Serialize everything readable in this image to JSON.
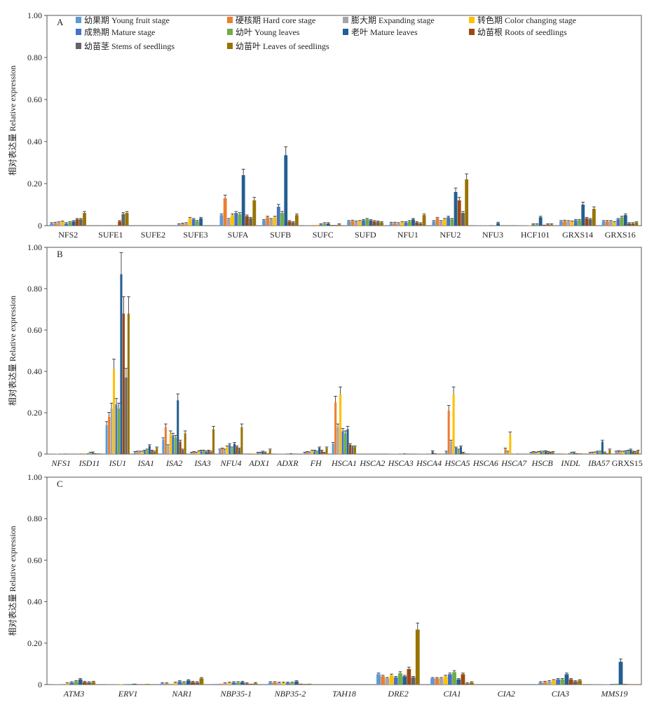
{
  "figure": {
    "legend": [
      {
        "label": "幼果期 Young fruit stage",
        "color": "#5B9BD5"
      },
      {
        "label": "硬核期 Hard core stage",
        "color": "#ED7D31"
      },
      {
        "label": "膨大期 Expanding stage",
        "color": "#A5A5A5"
      },
      {
        "label": "转色期 Color changing stage",
        "color": "#FFC000"
      },
      {
        "label": "成熟期 Mature stage",
        "color": "#4472C4"
      },
      {
        "label": "幼叶 Young leaves",
        "color": "#70AD47"
      },
      {
        "label": "老叶 Mature leaves",
        "color": "#255E91"
      },
      {
        "label": "幼苗根 Roots of seedlings",
        "color": "#9E480E"
      },
      {
        "label": "幼苗茎 Stems of seedlings",
        "color": "#636363"
      },
      {
        "label": "幼苗叶 Leaves of seedlings",
        "color": "#997300"
      }
    ]
  },
  "chart_data": [
    {
      "type": "bar",
      "panel": "A",
      "ylabel": "相对表达量 Relative expression",
      "ylim": [
        0,
        1.0
      ],
      "yticks": [
        "0",
        "0.20",
        "0.40",
        "0.60",
        "0.80",
        "1.00"
      ],
      "italic_categories": false,
      "categories": [
        "NFS2",
        "SUFE1",
        "SUFE2",
        "SUFE3",
        "SUFA",
        "SUFB",
        "SUFC",
        "SUFD",
        "NFU1",
        "NFU2",
        "NFU3",
        "HCF101",
        "GRXS14",
        "GRXS16"
      ],
      "values": [
        [
          0.01,
          0.012,
          0.015,
          0.018,
          0.01,
          0.015,
          0.02,
          0.03,
          0.03,
          0.06
        ],
        [
          0.0,
          0.0,
          0.0,
          0.0,
          0.0,
          0.0,
          0.0,
          0.02,
          0.055,
          0.06
        ],
        [
          0.0,
          0.0,
          0.0,
          0.0,
          0.0,
          0.0,
          0.0,
          0.0,
          0.0,
          0.0
        ],
        [
          0.005,
          0.008,
          0.01,
          0.035,
          0.03,
          0.02,
          0.035,
          0.0,
          0.0,
          0.0
        ],
        [
          0.05,
          0.13,
          0.03,
          0.05,
          0.06,
          0.055,
          0.24,
          0.045,
          0.035,
          0.12
        ],
        [
          0.025,
          0.04,
          0.03,
          0.04,
          0.09,
          0.06,
          0.335,
          0.02,
          0.015,
          0.05
        ],
        [
          0.002,
          0.002,
          0.003,
          0.004,
          0.005,
          0.01,
          0.01,
          0.003,
          0.003,
          0.005
        ],
        [
          0.02,
          0.022,
          0.018,
          0.02,
          0.025,
          0.03,
          0.025,
          0.02,
          0.018,
          0.015
        ],
        [
          0.012,
          0.012,
          0.01,
          0.015,
          0.015,
          0.02,
          0.03,
          0.015,
          0.01,
          0.05
        ],
        [
          0.02,
          0.035,
          0.02,
          0.03,
          0.04,
          0.03,
          0.16,
          0.12,
          0.06,
          0.22
        ],
        [
          0.001,
          0.001,
          0.001,
          0.001,
          0.002,
          0.002,
          0.012,
          0.001,
          0.001,
          0.001
        ],
        [
          0.001,
          0.001,
          0.001,
          0.002,
          0.005,
          0.005,
          0.04,
          0.004,
          0.005,
          0.005
        ],
        [
          0.02,
          0.022,
          0.02,
          0.018,
          0.025,
          0.025,
          0.1,
          0.035,
          0.03,
          0.08
        ],
        [
          0.02,
          0.02,
          0.02,
          0.015,
          0.03,
          0.04,
          0.05,
          0.01,
          0.01,
          0.015
        ]
      ]
    },
    {
      "type": "bar",
      "panel": "B",
      "ylabel": "相对表达量 Relative expression",
      "ylim": [
        0,
        1.0
      ],
      "yticks": [
        "0",
        "0.20",
        "0.40",
        "0.60",
        "0.80",
        "1.00"
      ],
      "italic_categories": true,
      "categories": [
        "NFS1",
        "ISD11",
        "ISU1",
        "ISA1",
        "ISA2",
        "ISA3",
        "NFU4",
        "ADX1",
        "ADXR",
        "FH",
        "HSCA1",
        "HSCA2",
        "HSCA3",
        "HSCA4",
        "HSCA5",
        "HSCA6",
        "HSCA7",
        "HSCB",
        "INDL",
        "IBA57",
        "GRXS15"
      ],
      "values": [
        [
          0.001,
          0.001,
          0.001,
          0.002,
          0.002,
          0.002,
          0.002,
          0.001,
          0.001,
          0.001
        ],
        [
          0.002,
          0.003,
          0.003,
          0.004,
          0.004,
          0.005,
          0.006,
          0.004,
          0.003,
          0.003
        ],
        [
          0.14,
          0.18,
          0.22,
          0.41,
          0.24,
          0.22,
          0.87,
          0.68,
          0.37,
          0.68
        ],
        [
          0.008,
          0.01,
          0.01,
          0.01,
          0.015,
          0.02,
          0.04,
          0.015,
          0.01,
          0.03
        ],
        [
          0.07,
          0.13,
          0.04,
          0.1,
          0.09,
          0.08,
          0.26,
          0.06,
          0.02,
          0.1
        ],
        [
          0.005,
          0.008,
          0.005,
          0.012,
          0.015,
          0.015,
          0.01,
          0.015,
          0.01,
          0.12
        ],
        [
          0.02,
          0.025,
          0.02,
          0.035,
          0.045,
          0.03,
          0.05,
          0.035,
          0.025,
          0.13
        ],
        [
          0.003,
          0.003,
          0.003,
          0.004,
          0.005,
          0.005,
          0.01,
          0.006,
          0.004,
          0.02
        ],
        [
          0.001,
          0.001,
          0.001,
          0.001,
          0.002,
          0.003,
          0.004,
          0.002,
          0.002,
          0.002
        ],
        [
          0.005,
          0.008,
          0.006,
          0.015,
          0.015,
          0.01,
          0.03,
          0.015,
          0.005,
          0.03
        ],
        [
          0.05,
          0.25,
          0.13,
          0.29,
          0.11,
          0.1,
          0.12,
          0.045,
          0.035,
          0.035
        ],
        [
          0.0,
          0.0,
          0.0,
          0.0,
          0.0,
          0.0,
          0.0,
          0.0,
          0.0,
          0.0
        ],
        [
          0.001,
          0.001,
          0.001,
          0.001,
          0.002,
          0.002,
          0.003,
          0.002,
          0.001,
          0.001
        ],
        [
          0.001,
          0.001,
          0.001,
          0.001,
          0.002,
          0.002,
          0.012,
          0.004,
          0.002,
          0.002
        ],
        [
          0.01,
          0.21,
          0.06,
          0.29,
          0.03,
          0.02,
          0.035,
          0.005,
          0.003,
          0.003
        ],
        [
          0.0,
          0.0,
          0.0,
          0.0,
          0.0,
          0.0,
          0.0,
          0.0,
          0.0,
          0.0
        ],
        [
          0.002,
          0.025,
          0.01,
          0.095,
          0.002,
          0.002,
          0.002,
          0.001,
          0.001,
          0.001
        ],
        [
          0.005,
          0.008,
          0.005,
          0.008,
          0.01,
          0.01,
          0.012,
          0.008,
          0.005,
          0.008
        ],
        [
          0.003,
          0.003,
          0.003,
          0.003,
          0.004,
          0.005,
          0.006,
          0.004,
          0.003,
          0.003
        ],
        [
          0.003,
          0.005,
          0.005,
          0.006,
          0.01,
          0.01,
          0.06,
          0.006,
          0.004,
          0.02
        ],
        [
          0.01,
          0.012,
          0.01,
          0.01,
          0.012,
          0.015,
          0.02,
          0.01,
          0.008,
          0.015
        ]
      ]
    },
    {
      "type": "bar",
      "panel": "C",
      "ylabel": "相对表达量 Relative expression",
      "ylim": [
        0,
        1.0
      ],
      "yticks": [
        "0",
        "0.20",
        "0.40",
        "0.60",
        "0.80",
        "1.00"
      ],
      "italic_categories": true,
      "categories": [
        "ATM3",
        "ERV1",
        "NAR1",
        "NBP35-1",
        "NBP35-2",
        "TAH18",
        "DRE2",
        "CIA1",
        "CIA2",
        "CIA3",
        "MMS19"
      ],
      "values": [
        [
          0.002,
          0.002,
          0.003,
          0.005,
          0.01,
          0.015,
          0.025,
          0.012,
          0.01,
          0.012
        ],
        [
          0.001,
          0.001,
          0.001,
          0.002,
          0.002,
          0.003,
          0.004,
          0.002,
          0.002,
          0.003
        ],
        [
          0.005,
          0.005,
          0.004,
          0.008,
          0.015,
          0.01,
          0.02,
          0.012,
          0.01,
          0.03
        ],
        [
          0.003,
          0.004,
          0.005,
          0.008,
          0.01,
          0.01,
          0.012,
          0.005,
          0.004,
          0.006
        ],
        [
          0.01,
          0.01,
          0.008,
          0.008,
          0.008,
          0.008,
          0.015,
          0.004,
          0.003,
          0.004
        ],
        [
          0.0,
          0.0,
          0.0,
          0.0,
          0.0,
          0.0,
          0.0,
          0.0,
          0.0,
          0.0
        ],
        [
          0.05,
          0.04,
          0.03,
          0.045,
          0.035,
          0.055,
          0.04,
          0.075,
          0.035,
          0.265
        ],
        [
          0.03,
          0.03,
          0.03,
          0.04,
          0.05,
          0.06,
          0.025,
          0.05,
          0.005,
          0.01
        ],
        [
          0.0,
          0.0,
          0.0,
          0.0,
          0.0,
          0.0,
          0.0,
          0.0,
          0.0,
          0.0
        ],
        [
          0.01,
          0.012,
          0.015,
          0.02,
          0.025,
          0.025,
          0.05,
          0.025,
          0.015,
          0.02
        ],
        [
          0.001,
          0.001,
          0.001,
          0.001,
          0.003,
          0.004,
          0.11,
          0.003,
          0.002,
          0.002
        ]
      ]
    }
  ]
}
